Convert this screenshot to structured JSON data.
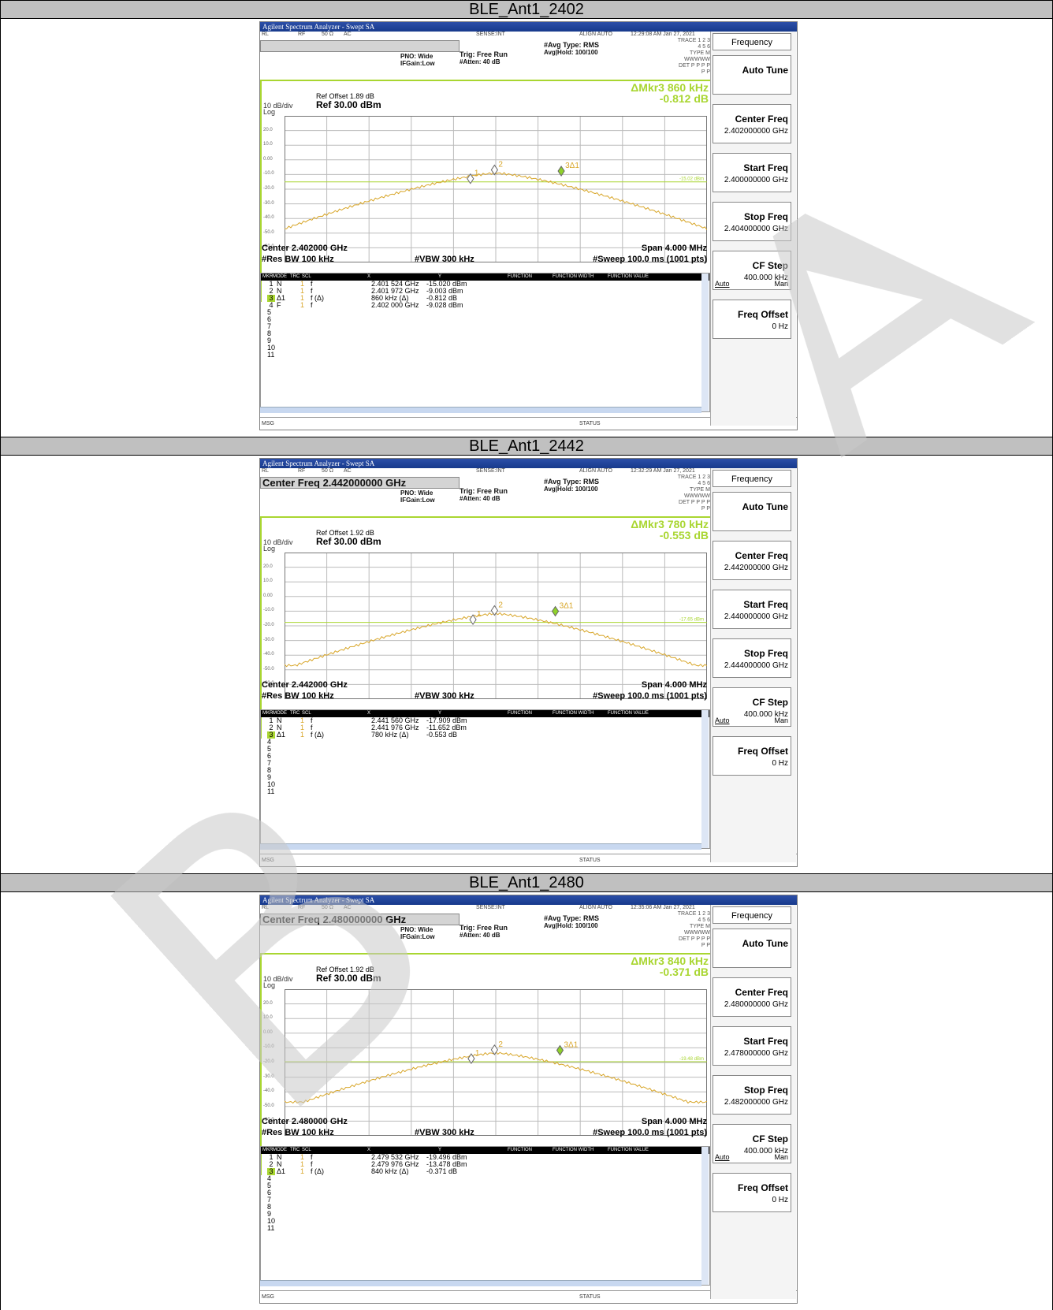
{
  "analyzer_title": "Agilent Spectrum Analyzer - Swept SA",
  "top_row": {
    "rl": "RL",
    "rf": "RF",
    "ohm": "50 Ω",
    "ac": "AC",
    "sense": "SENSE:INT",
    "align": "ALIGN AUTO"
  },
  "settings": {
    "pno": "PNO: Wide",
    "ifgain": "IFGain:Low",
    "trig": "Trig: Free Run",
    "atten": "#Atten: 40 dB",
    "avg_type": "#Avg Type: RMS",
    "avg_hold": "Avg|Hold: 100/100",
    "trace_label": "TRACE",
    "trace_val": "1 2 3 4 5 6",
    "type_label": "TYPE",
    "type_val": "M WWWWW",
    "det_label": "DET",
    "det_val": "P P P P P P",
    "ref_val": "Ref 30.00 dBm",
    "db_div": "10 dB/div",
    "log": "Log",
    "vbw": "#VBW 300 kHz",
    "span": "Span 4.000 MHz",
    "res_bw": "#Res BW 100 kHz",
    "sweep": "#Sweep  100.0 ms (1001 pts)",
    "msg": "MSG",
    "status": "STATUS"
  },
  "y_ticks": [
    "20.0",
    "10.0",
    "0.00",
    "-10.0",
    "-20.0",
    "-30.0",
    "-40.0",
    "-50.0",
    "-60.0"
  ],
  "table_headers": [
    "MKR",
    "MODE",
    "TRC",
    "SCL",
    "X",
    "Y",
    "FUNCTION",
    "FUNCTION WIDTH",
    "FUNCTION VALUE"
  ],
  "softkeys": {
    "menu": "Frequency",
    "auto_tune": "Auto Tune",
    "center_freq": "Center Freq",
    "start_freq": "Start Freq",
    "stop_freq": "Stop Freq",
    "cf_step": "CF Step",
    "cf_step_val": "400.000 kHz",
    "auto": "Auto",
    "man": "Man",
    "freq_offset": "Freq Offset",
    "freq_offset_val": "0 Hz"
  },
  "panels": [
    {
      "label": "BLE_Ant1_2402",
      "time": "12:29:08 AM Jan 27, 2021",
      "entry": "",
      "ref_offset": "Ref Offset 1.89 dB",
      "mkr_read_1": "ΔMkr3 860 kHz",
      "mkr_read_2": "-0.812 dB",
      "thresh_label": "-15.02 dBm",
      "center": "Center 2.402000 GHz",
      "center_freq_val": "2.402000000 GHz",
      "start_freq_val": "2.400000000 GHz",
      "stop_freq_val": "2.404000000 GHz",
      "markers": [
        {
          "n": "1",
          "mode": "N",
          "trc": "1",
          "scl": "f",
          "fn": "",
          "x": "2.401 524 GHz",
          "y": "-15.020 dBm"
        },
        {
          "n": "2",
          "mode": "N",
          "trc": "1",
          "scl": "f",
          "fn": "",
          "x": "2.401 972 GHz",
          "y": "-9.003 dBm"
        },
        {
          "n": "3",
          "mode": "Δ1",
          "trc": "1",
          "scl": "f",
          "fn": "(Δ)",
          "x": "860 kHz (Δ)",
          "y": "-0.812 dB"
        },
        {
          "n": "4",
          "mode": "F",
          "trc": "1",
          "scl": "f",
          "fn": "",
          "x": "2.402 000 GHz",
          "y": "-9.028 dBm"
        }
      ],
      "empty_rows": [
        "5",
        "6",
        "7",
        "8",
        "9",
        "10",
        "11"
      ]
    },
    {
      "label": "BLE_Ant1_2442",
      "time": "12:32:29 AM Jan 27, 2021",
      "entry": "Center Freq 2.442000000 GHz",
      "ref_offset": "Ref Offset 1.92 dB",
      "mkr_read_1": "ΔMkr3 780 kHz",
      "mkr_read_2": "-0.553 dB",
      "thresh_label": "-17.65 dBm",
      "center": "Center 2.442000 GHz",
      "center_freq_val": "2.442000000 GHz",
      "start_freq_val": "2.440000000 GHz",
      "stop_freq_val": "2.444000000 GHz",
      "markers": [
        {
          "n": "1",
          "mode": "N",
          "trc": "1",
          "scl": "f",
          "fn": "",
          "x": "2.441 560 GHz",
          "y": "-17.909 dBm"
        },
        {
          "n": "2",
          "mode": "N",
          "trc": "1",
          "scl": "f",
          "fn": "",
          "x": "2.441 976 GHz",
          "y": "-11.652 dBm"
        },
        {
          "n": "3",
          "mode": "Δ1",
          "trc": "1",
          "scl": "f",
          "fn": "(Δ)",
          "x": "780 kHz (Δ)",
          "y": "-0.553 dB"
        }
      ],
      "empty_rows": [
        "4",
        "5",
        "6",
        "7",
        "8",
        "9",
        "10",
        "11"
      ]
    },
    {
      "label": "BLE_Ant1_2480",
      "time": "12:35:06 AM Jan 27, 2021",
      "entry": "Center Freq 2.480000000 GHz",
      "ref_offset": "Ref Offset 1.92 dB",
      "mkr_read_1": "ΔMkr3 840 kHz",
      "mkr_read_2": "-0.371 dB",
      "thresh_label": "-19.48 dBm",
      "center": "Center 2.480000 GHz",
      "center_freq_val": "2.480000000 GHz",
      "start_freq_val": "2.478000000 GHz",
      "stop_freq_val": "2.482000000 GHz",
      "markers": [
        {
          "n": "1",
          "mode": "N",
          "trc": "1",
          "scl": "f",
          "fn": "",
          "x": "2.479 532 GHz",
          "y": "-19.496 dBm"
        },
        {
          "n": "2",
          "mode": "N",
          "trc": "1",
          "scl": "f",
          "fn": "",
          "x": "2.479 976 GHz",
          "y": "-13.478 dBm"
        },
        {
          "n": "3",
          "mode": "Δ1",
          "trc": "1",
          "scl": "f",
          "fn": "(Δ)",
          "x": "840 kHz (Δ)",
          "y": "-0.371 dB"
        }
      ],
      "empty_rows": [
        "4",
        "5",
        "6",
        "7",
        "8",
        "9",
        "10",
        "11"
      ]
    }
  ],
  "watermark": "BL Lab"
}
